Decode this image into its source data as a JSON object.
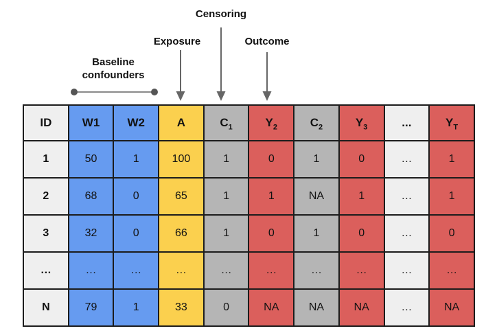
{
  "labels": {
    "baseline_line1": "Baseline",
    "baseline_line2": "confounders",
    "exposure": "Exposure",
    "censoring": "Censoring",
    "outcome": "Outcome"
  },
  "colors": {
    "blue": "#669BF0",
    "yellow": "#FBD04E",
    "gray": "#B5B5B5",
    "red": "#DB5F5C",
    "light": "#EFEFEF",
    "border": "#1c1c1c",
    "arrow": "#666666",
    "span_line": "#8a8a8a",
    "span_dot": "#555555"
  },
  "table": {
    "columns": [
      {
        "key": "id",
        "label": "ID",
        "color": "light"
      },
      {
        "key": "w1",
        "label": "W1",
        "color": "blue"
      },
      {
        "key": "w2",
        "label": "W2",
        "color": "blue"
      },
      {
        "key": "a",
        "label": "A",
        "color": "yellow"
      },
      {
        "key": "c1",
        "label": "C_1",
        "color": "gray"
      },
      {
        "key": "y2",
        "label": "Y_2",
        "color": "red"
      },
      {
        "key": "c2",
        "label": "C_2",
        "color": "gray"
      },
      {
        "key": "y3",
        "label": "Y_3",
        "color": "red"
      },
      {
        "key": "dots",
        "label": "...",
        "color": "light"
      },
      {
        "key": "yT",
        "label": "Y_T",
        "color": "red"
      }
    ],
    "rows": [
      [
        "1",
        "50",
        "1",
        "100",
        "1",
        "0",
        "1",
        "0",
        "…",
        "1"
      ],
      [
        "2",
        "68",
        "0",
        "65",
        "1",
        "1",
        "NA",
        "1",
        "…",
        "1"
      ],
      [
        "3",
        "32",
        "0",
        "66",
        "1",
        "0",
        "1",
        "0",
        "…",
        "0"
      ],
      [
        "…",
        "…",
        "…",
        "…",
        "…",
        "…",
        "…",
        "…",
        "…",
        "…"
      ],
      [
        "N",
        "79",
        "1",
        "33",
        "0",
        "NA",
        "NA",
        "NA",
        "…",
        "NA"
      ]
    ]
  }
}
